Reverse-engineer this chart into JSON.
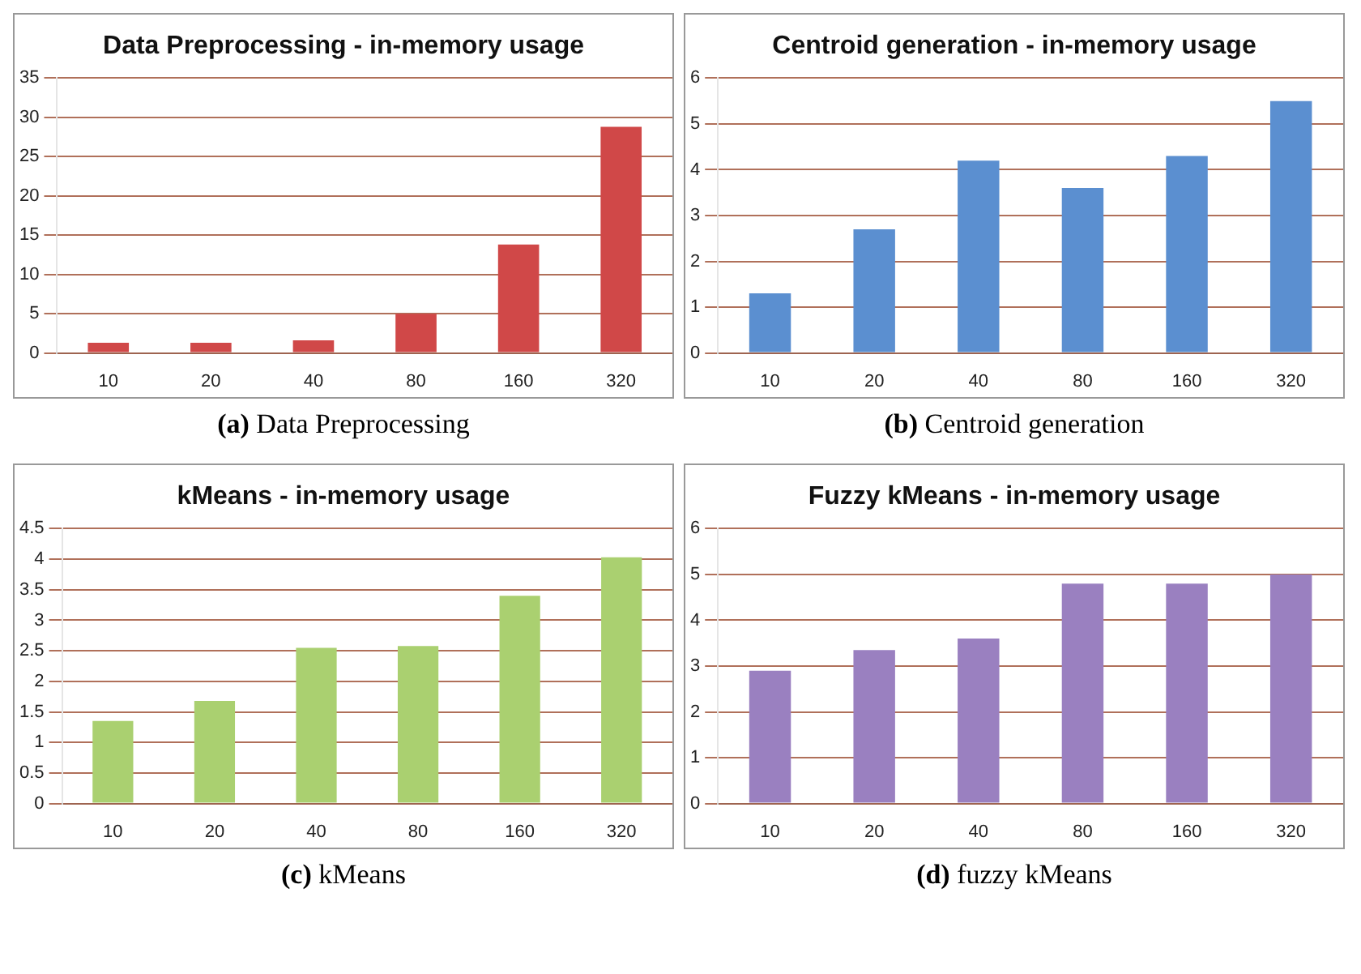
{
  "chart_data": [
    {
      "type": "bar",
      "title": "Data Preprocessing - in-memory usage",
      "categories": [
        "10",
        "20",
        "40",
        "80",
        "160",
        "320"
      ],
      "values": [
        1.3,
        1.3,
        1.6,
        5,
        13.8,
        28.8
      ],
      "color": "#d04848",
      "ylim": [
        0,
        35
      ],
      "yticks": [
        0,
        5,
        10,
        15,
        20,
        25,
        30,
        35
      ],
      "grid": "y",
      "legend": false,
      "annotations": [
        "(a) Data Preprocessing"
      ]
    },
    {
      "type": "bar",
      "title": "Centroid generation - in-memory usage",
      "categories": [
        "10",
        "20",
        "40",
        "80",
        "160",
        "320"
      ],
      "values": [
        1.3,
        2.7,
        4.2,
        3.6,
        4.3,
        5.5
      ],
      "color": "#5b8fd0",
      "ylim": [
        0,
        6
      ],
      "yticks": [
        0,
        1,
        2,
        3,
        4,
        5,
        6
      ],
      "grid": "y",
      "legend": false,
      "annotations": [
        "(b) Centroid generation"
      ]
    },
    {
      "type": "bar",
      "title": "kMeans - in-memory usage",
      "categories": [
        "10",
        "20",
        "40",
        "80",
        "160",
        "320"
      ],
      "values": [
        1.35,
        1.68,
        2.55,
        2.58,
        3.4,
        4.03
      ],
      "color": "#aad070",
      "ylim": [
        0,
        4.5
      ],
      "yticks": [
        0,
        0.5,
        1,
        1.5,
        2,
        2.5,
        3,
        3.5,
        4,
        4.5
      ],
      "grid": "y",
      "legend": false,
      "annotations": [
        "(c) kMeans"
      ]
    },
    {
      "type": "bar",
      "title": "Fuzzy kMeans - in-memory usage",
      "categories": [
        "10",
        "20",
        "40",
        "80",
        "160",
        "320"
      ],
      "values": [
        2.9,
        3.35,
        3.6,
        4.8,
        4.8,
        5.0
      ],
      "color": "#9a80c0",
      "ylim": [
        0,
        6
      ],
      "yticks": [
        0,
        1,
        2,
        3,
        4,
        5,
        6
      ],
      "grid": "y",
      "legend": false,
      "annotations": [
        "(d) fuzzy kMeans"
      ]
    }
  ]
}
